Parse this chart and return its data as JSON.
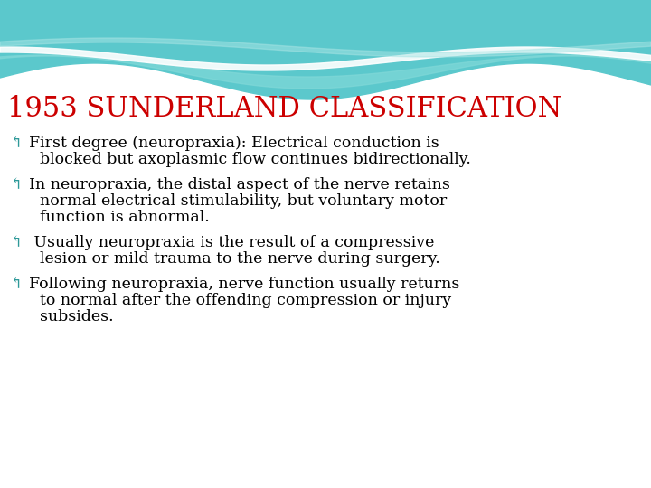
{
  "title": "1953 SUNDERLAND CLASSIFICATION",
  "title_color": "#CC0000",
  "title_fontsize": 22,
  "background_color": "#FFFFFF",
  "bullet_color": "#2E9999",
  "text_color": "#000000",
  "text_fontsize": 12.5,
  "bullet_items": [
    [
      "↰First degree (neuropraxia): Electrical conduction is",
      "blocked but axoplasmic flow continues bidirectionally."
    ],
    [
      "↰In neuropraxia, the distal aspect of the nerve retains",
      "normal electrical stimulability, but voluntary motor",
      "function is abnormal."
    ],
    [
      "↰ Usually neuropraxia is the result of a compressive",
      "lesion or mild trauma to the nerve during surgery."
    ],
    [
      "↰Following neuropraxia, nerve function usually returns",
      "to normal after the offending compression or injury",
      "subsides."
    ]
  ],
  "wave1_color": "#5BC8CC",
  "wave2_color": "#80D8D8",
  "wave3_color": "#A8E4E4",
  "white_band_color": "#FFFFFF"
}
